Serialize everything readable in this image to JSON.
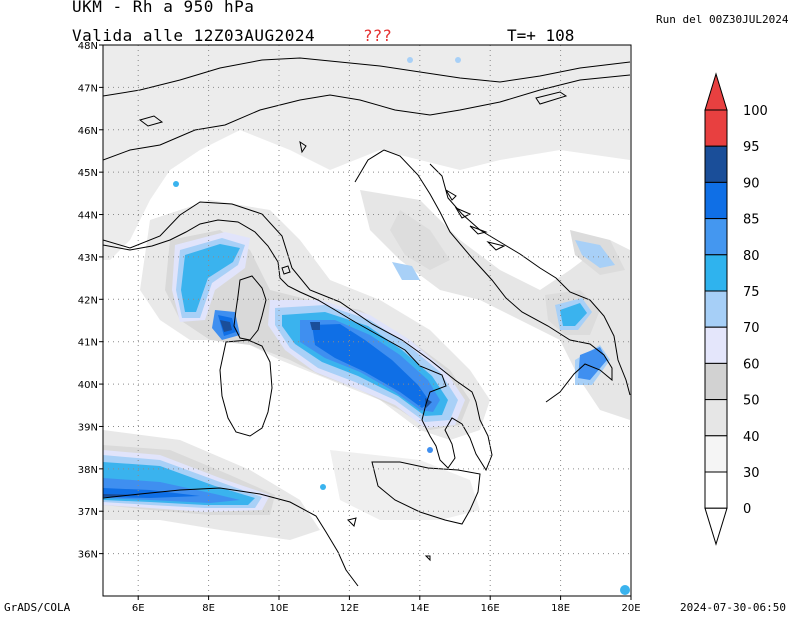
{
  "header": {
    "title": "UKM - Rh a 950 hPa",
    "valid": "Valida alle 12Z03AUG2024",
    "unknown": "???",
    "tplus": "T=+ 108",
    "run": "Run del 00Z30JUL2024"
  },
  "footer": {
    "credit": "GrADS/COLA",
    "timestamp": "2024-07-30-06:50"
  },
  "map": {
    "lon_range": [
      5,
      20
    ],
    "lat_range": [
      35,
      48
    ],
    "lon_ticks": [
      "6E",
      "8E",
      "10E",
      "12E",
      "14E",
      "16E",
      "18E",
      "20E"
    ],
    "lat_ticks": [
      "36N",
      "37N",
      "38N",
      "39N",
      "40N",
      "41N",
      "42N",
      "43N",
      "44N",
      "45N",
      "46N",
      "47N",
      "48N"
    ],
    "grid": true
  },
  "colorbar": {
    "levels": [
      "0",
      "30",
      "40",
      "50",
      "60",
      "70",
      "75",
      "80",
      "85",
      "90",
      "95",
      "100"
    ],
    "colors": [
      "#ffffff",
      "#ffffff",
      "#f5f5f5",
      "#e6e6e6",
      "#d2d2d2",
      "#e4e6fb",
      "#a6cff7",
      "#2fb3ee",
      "#4497f0",
      "#0f6fe6",
      "#1a4e99",
      "#e84040"
    ]
  },
  "colors": {
    "land_line": "#000000",
    "grid_line": "#888888",
    "rh_light": "#ebebeb",
    "rh_mid": "#d6d6d6",
    "rh_70": "#e4e6fb",
    "rh_75": "#a6cff7",
    "rh_80": "#2fb3ee",
    "rh_85": "#4497f0",
    "rh_90": "#0f6fe6",
    "rh_95": "#1a4e99"
  }
}
